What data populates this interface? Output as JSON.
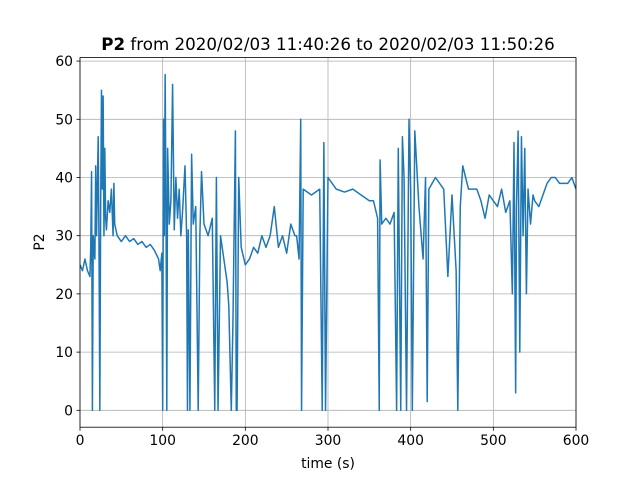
{
  "chart_data": {
    "type": "line",
    "title": {
      "name": "P2",
      "text": "from 2020/02/03 11:40:26 to 2020/02/03 11:50:26"
    },
    "x_label": "time (s)",
    "y_label": "P2",
    "xlim": [
      0,
      600
    ],
    "ylim": [
      -2.9,
      60.6
    ],
    "xticks": [
      0,
      100,
      200,
      300,
      400,
      500,
      600
    ],
    "yticks": [
      0,
      10,
      20,
      30,
      40,
      50,
      60
    ],
    "grid": true,
    "series": [
      {
        "name": "P2",
        "color": "#1f77b4",
        "x": [
          0,
          3,
          6,
          9,
          12,
          13,
          14,
          15,
          16,
          18,
          19,
          20,
          22,
          23,
          24,
          25,
          26,
          27,
          28,
          29,
          30,
          31,
          32,
          34,
          36,
          38,
          40,
          41,
          42,
          45,
          50,
          55,
          60,
          65,
          70,
          75,
          80,
          85,
          90,
          95,
          97,
          99,
          100,
          101,
          102,
          103,
          104,
          105,
          106,
          108,
          110,
          112,
          114,
          116,
          118,
          120,
          122,
          124,
          127,
          129,
          130,
          131,
          133,
          135,
          137,
          140,
          143,
          145,
          147,
          150,
          155,
          160,
          163,
          165,
          167,
          170,
          175,
          178,
          180,
          183,
          185,
          188,
          189,
          190,
          192,
          195,
          200,
          205,
          210,
          215,
          220,
          225,
          230,
          235,
          240,
          245,
          250,
          255,
          260,
          262,
          265,
          267,
          268,
          270,
          280,
          290,
          293,
          295,
          297,
          300,
          310,
          320,
          330,
          340,
          350,
          355,
          360,
          362,
          363,
          365,
          370,
          375,
          380,
          383,
          385,
          388,
          390,
          392,
          395,
          398,
          400,
          402,
          405,
          410,
          415,
          418,
          420,
          422,
          430,
          440,
          445,
          450,
          455,
          457,
          460,
          463,
          470,
          480,
          485,
          490,
          495,
          500,
          505,
          510,
          515,
          520,
          523,
          525,
          527,
          528,
          530,
          532,
          534,
          536,
          538,
          540,
          542,
          545,
          548,
          550,
          555,
          560,
          565,
          570,
          575,
          580,
          590,
          595,
          600
        ],
        "values": [
          25,
          24,
          26,
          24,
          23,
          28,
          41,
          0,
          30,
          26,
          42,
          30,
          47,
          28,
          0,
          35,
          55,
          38,
          54,
          30,
          45,
          33,
          31,
          36,
          34,
          38,
          30,
          39,
          32,
          30,
          29,
          30,
          29,
          29.5,
          28.5,
          29,
          28,
          28.5,
          27.5,
          26,
          24,
          27,
          0,
          50,
          30,
          57.7,
          36,
          0,
          45,
          32,
          36,
          56,
          31,
          40,
          33,
          38,
          30,
          34,
          42,
          30,
          0,
          31,
          0,
          44,
          32,
          35,
          0,
          30,
          41,
          32,
          30,
          33,
          0,
          40,
          0,
          30,
          25,
          22,
          18,
          0,
          15,
          48,
          0,
          0,
          40,
          28,
          25,
          26,
          28,
          27,
          30,
          28,
          30,
          35,
          28,
          30,
          27,
          32,
          30,
          30,
          26,
          50,
          0,
          38,
          37,
          38,
          0,
          46,
          0,
          40,
          38,
          37.5,
          38,
          37,
          36,
          36,
          33,
          0,
          43,
          32,
          33,
          32,
          34,
          0,
          45,
          0,
          47,
          40,
          0,
          50,
          38,
          0,
          48,
          35,
          26,
          40,
          1.5,
          38,
          40,
          38,
          23,
          37,
          24,
          0,
          35,
          42,
          38,
          38,
          36,
          33,
          37,
          36,
          35,
          38,
          34,
          36,
          20,
          46,
          3,
          35,
          48,
          10,
          47,
          30,
          45,
          20,
          38,
          32,
          37,
          36,
          35,
          37,
          39,
          40,
          40,
          39,
          39,
          40,
          38
        ]
      }
    ]
  }
}
